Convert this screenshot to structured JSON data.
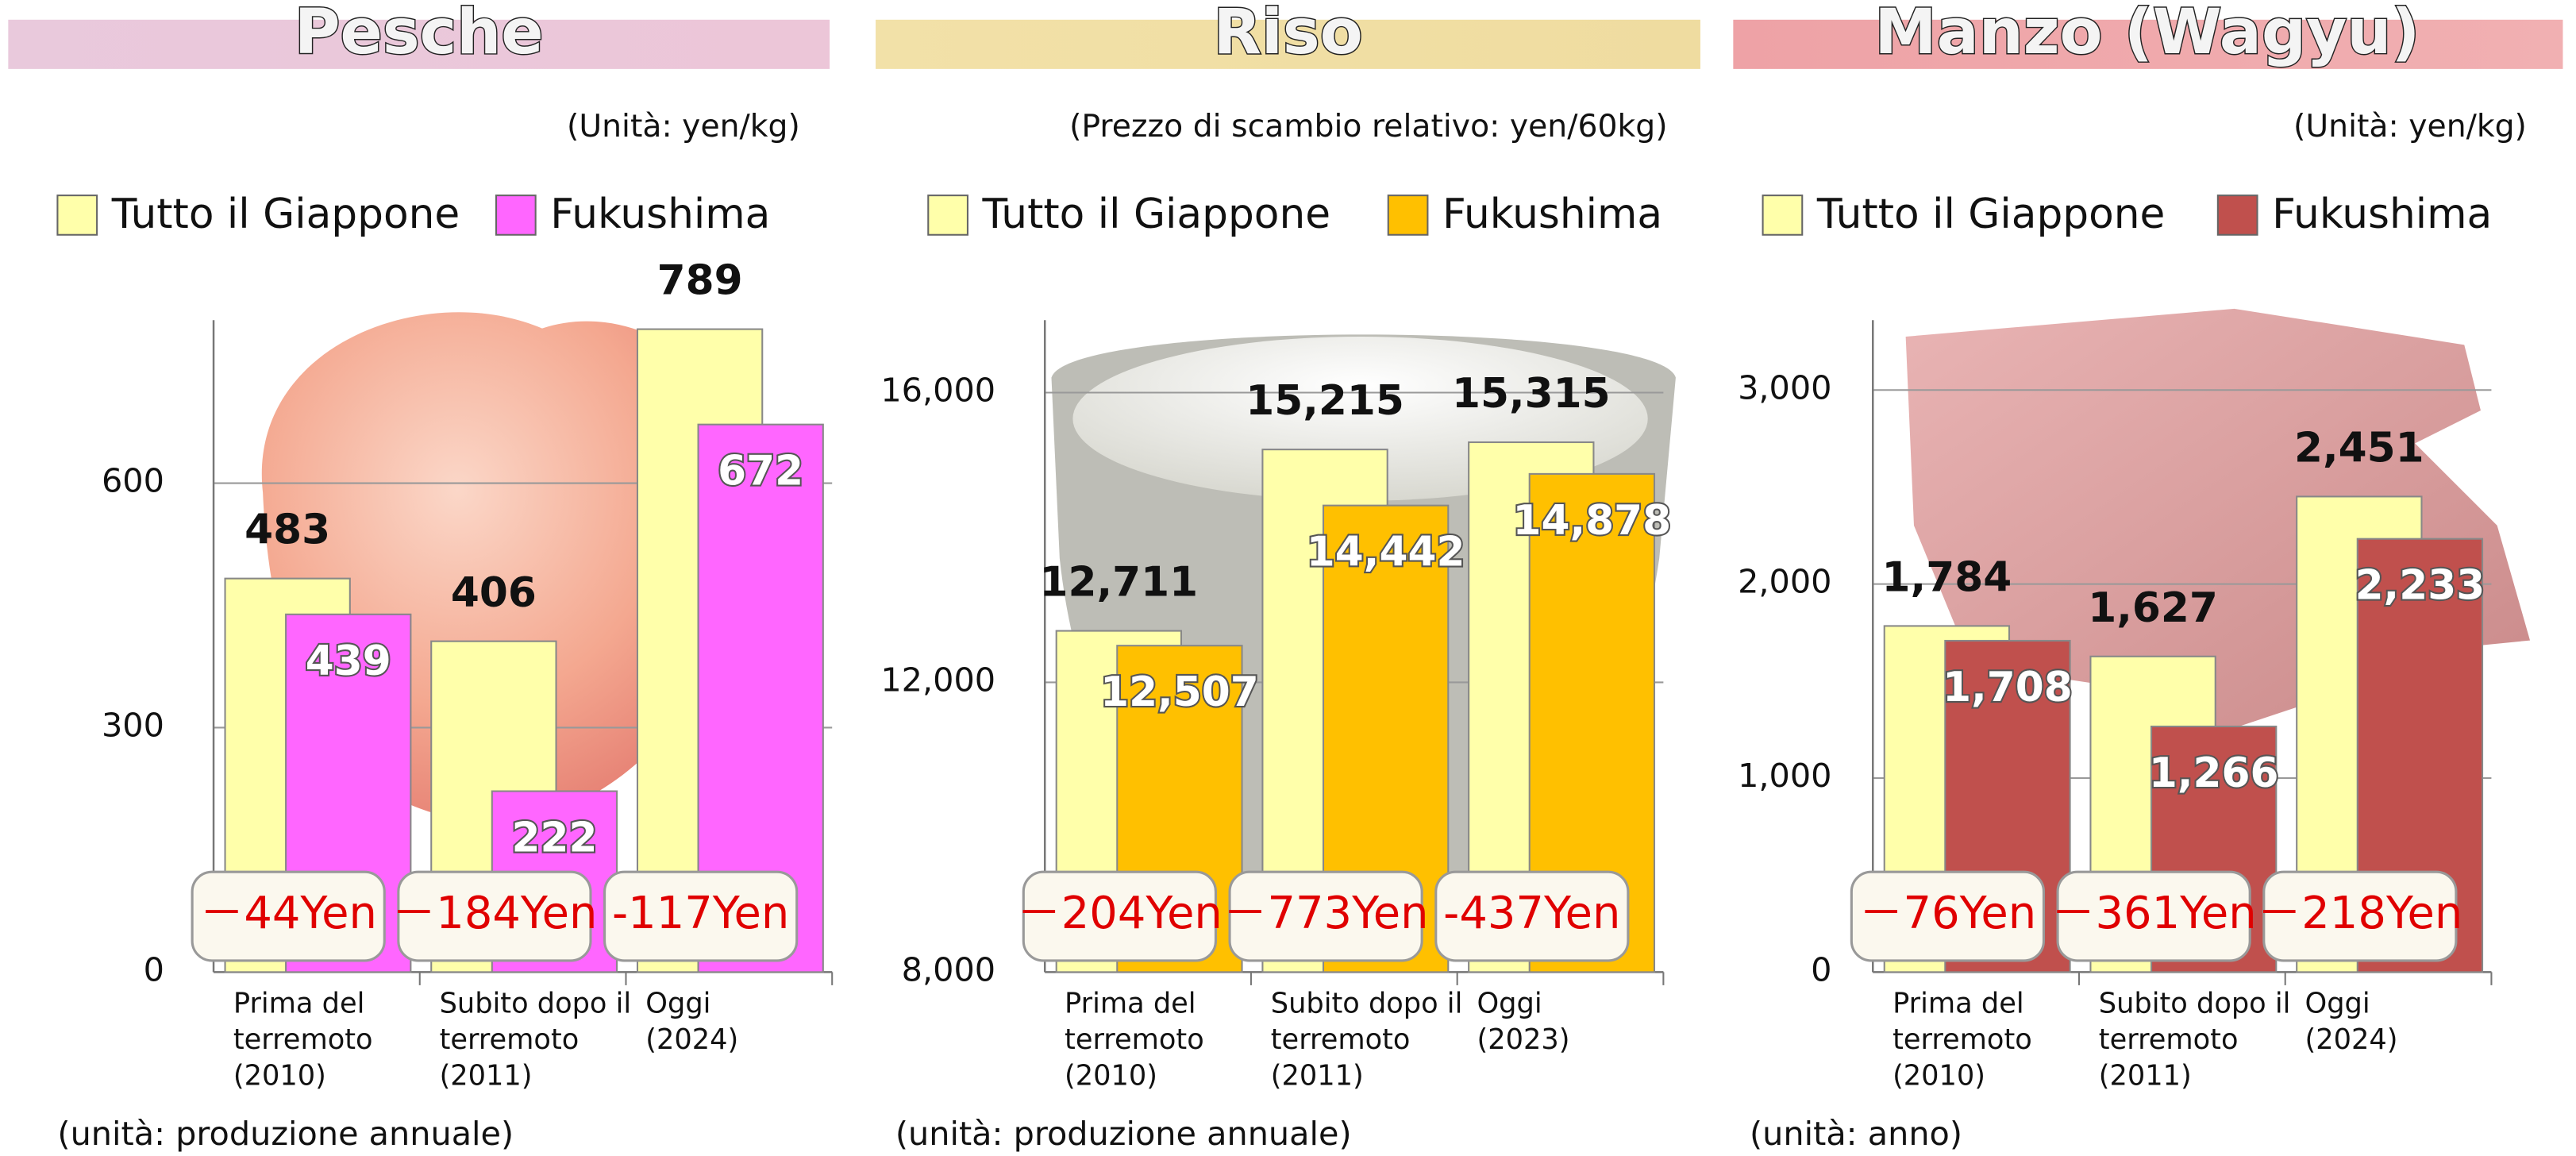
{
  "chart_data": [
    {
      "type": "bar",
      "title": "Pesche",
      "note": "(Unità: yen/kg)",
      "footnote": "(unità: produzione annuale)",
      "categories": [
        [
          "Prima del",
          "terremoto",
          "(2010)"
        ],
        [
          "Subito dopo il",
          "terremoto",
          "(2011)"
        ],
        [
          "Oggi",
          "(2024)"
        ]
      ],
      "series": [
        {
          "name": "Tutto il Giappone",
          "color": "#ffffaa",
          "values": [
            483,
            406,
            789
          ]
        },
        {
          "name": "Fukushima",
          "color": "#ff66ff",
          "values": [
            439,
            222,
            672
          ]
        }
      ],
      "diff_labels": [
        "－44Yen",
        "－184Yen",
        "-117Yen"
      ],
      "ylim": [
        0,
        800
      ],
      "yticks": [
        0,
        300,
        600
      ],
      "grid": true
    },
    {
      "type": "bar",
      "title": "Riso",
      "note": "(Prezzo di scambio relativo: yen/60kg)",
      "footnote": "(unità: produzione annuale)",
      "categories": [
        [
          "Prima del",
          "terremoto",
          "(2010)"
        ],
        [
          "Subito dopo il",
          "terremoto",
          "(2011)"
        ],
        [
          "Oggi",
          "(2023)"
        ]
      ],
      "series": [
        {
          "name": "Tutto il Giappone",
          "color": "#ffffaa",
          "values": [
            12711,
            15215,
            15315
          ],
          "value_labels": [
            "12,711",
            "15,215",
            "15,315"
          ]
        },
        {
          "name": "Fukushima",
          "color": "#ffc000",
          "values": [
            12507,
            14442,
            14878
          ],
          "value_labels": [
            "12,507",
            "14,442",
            "14,878"
          ]
        }
      ],
      "diff_labels": [
        "－204Yen",
        "－773Yen",
        "-437Yen"
      ],
      "ylim": [
        8000,
        17000
      ],
      "yticks": [
        {
          "value": 8000,
          "label": "8,000"
        },
        {
          "value": 12000,
          "label": "12,000"
        },
        {
          "value": 16000,
          "label": "16,000"
        }
      ],
      "grid": true
    },
    {
      "type": "bar",
      "title": "Manzo (Wagyu)",
      "note": "(Unità: yen/kg)",
      "footnote": "(unità: anno)",
      "categories": [
        [
          "Prima del",
          "terremoto",
          "(2010)"
        ],
        [
          "Subito dopo il",
          "terremoto",
          "(2011)"
        ],
        [
          "Oggi",
          "(2024)"
        ]
      ],
      "series": [
        {
          "name": "Tutto il Giappone",
          "color": "#ffffaa",
          "values": [
            1784,
            1627,
            2451
          ],
          "value_labels": [
            "1,784",
            "1,627",
            "2,451"
          ]
        },
        {
          "name": "Fukushima",
          "color": "#c0504d",
          "values": [
            1708,
            1266,
            2233
          ],
          "value_labels": [
            "1,708",
            "1,266",
            "2,233"
          ]
        }
      ],
      "diff_labels": [
        "－76Yen",
        "－361Yen",
        "－218Yen"
      ],
      "ylim": [
        0,
        3360
      ],
      "yticks": [
        0,
        {
          "value": 1000,
          "label": "1,000"
        },
        {
          "value": 2000,
          "label": "2,000"
        },
        {
          "value": 3000,
          "label": "3,000"
        }
      ],
      "grid": true
    }
  ]
}
